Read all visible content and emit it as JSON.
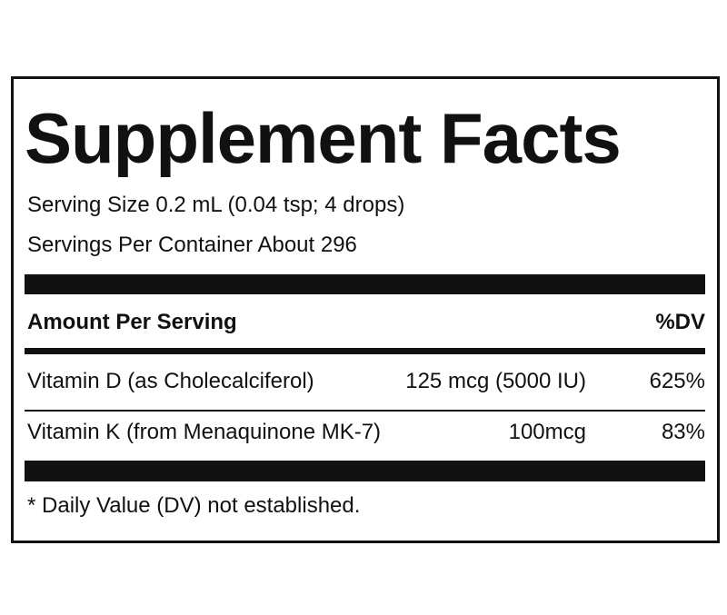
{
  "header": {
    "title": "Supplement Facts",
    "serving_size": "Serving Size 0.2 mL (0.04 tsp; 4 drops)",
    "servings_per_container": "Servings Per Container About 296"
  },
  "table": {
    "columns": [
      "Amount Per Serving",
      "%DV"
    ],
    "rows": [
      [
        "Vitamin D (as Cholecalciferol)",
        "125 mcg (5000 IU)",
        "625%"
      ],
      [
        "Vitamin K (from Menaquinone MK-7)",
        "100mcg",
        "83%"
      ]
    ]
  },
  "footnote": "* Daily Value (DV) not established."
}
